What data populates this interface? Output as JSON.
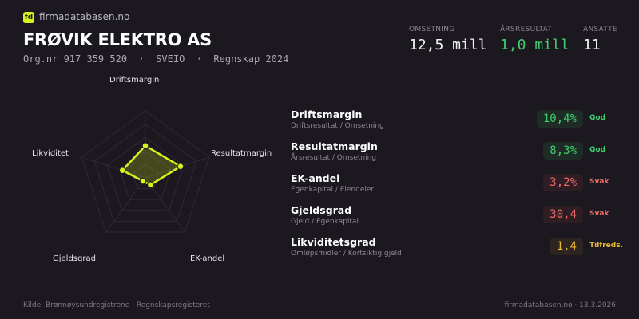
{
  "brand": {
    "logo_text": "fd",
    "site": "firmadatabasen.no",
    "accent": "#d4f51c"
  },
  "company": {
    "name": "FRØVIK ELEKTRO AS",
    "subtitle": "Org.nr 917 359 520  ·  SVEIO  ·  Regnskap 2024"
  },
  "kpis": [
    {
      "label": "OMSETNING",
      "value": "12,5 mill",
      "color": "#f2f2f2"
    },
    {
      "label": "ÅRSRESULTAT",
      "value": "1,0 mill",
      "color": "#3ecf6e"
    },
    {
      "label": "ANSATTE",
      "value": "11",
      "color": "#f2f2f2"
    }
  ],
  "chart_data": {
    "type": "radar",
    "axes": [
      "Driftsmargin",
      "Resultatmargin",
      "EK-andel",
      "Gjeldsgrad",
      "Likviditet"
    ],
    "scores": [
      0.48,
      0.55,
      0.13,
      0.06,
      0.36
    ],
    "range": [
      0,
      1
    ],
    "rings": 5,
    "color": "#d4f51c"
  },
  "metrics": [
    {
      "name": "Driftsmargin",
      "formula": "Driftsresultat / Omsetning",
      "value": "10,4%",
      "status": "God",
      "color": "#3ecf6e",
      "bg": "#1f2b25"
    },
    {
      "name": "Resultatmargin",
      "formula": "Årsresultat / Omsetning",
      "value": "8,3%",
      "status": "God",
      "color": "#3ecf6e",
      "bg": "#1f2b25"
    },
    {
      "name": "EK-andel",
      "formula": "Egenkapital / Eiendeler",
      "value": "3,2%",
      "status": "Svak",
      "color": "#ef6b6b",
      "bg": "#2e1e24"
    },
    {
      "name": "Gjeldsgrad",
      "formula": "Gjeld / Egenkapital",
      "value": "30,4",
      "status": "Svak",
      "color": "#ef6b6b",
      "bg": "#2e1e24"
    },
    {
      "name": "Likviditetsgrad",
      "formula": "Omløpsmidler / Kortsiktig gjeld",
      "value": "1,4",
      "status": "Tilfreds.",
      "color": "#e8b830",
      "bg": "#2d2520"
    }
  ],
  "footer": {
    "source": "Kilde: Brønnøysundregistrene · Regnskapsregisteret",
    "right": "firmadatabasen.no · 13.3.2026"
  }
}
